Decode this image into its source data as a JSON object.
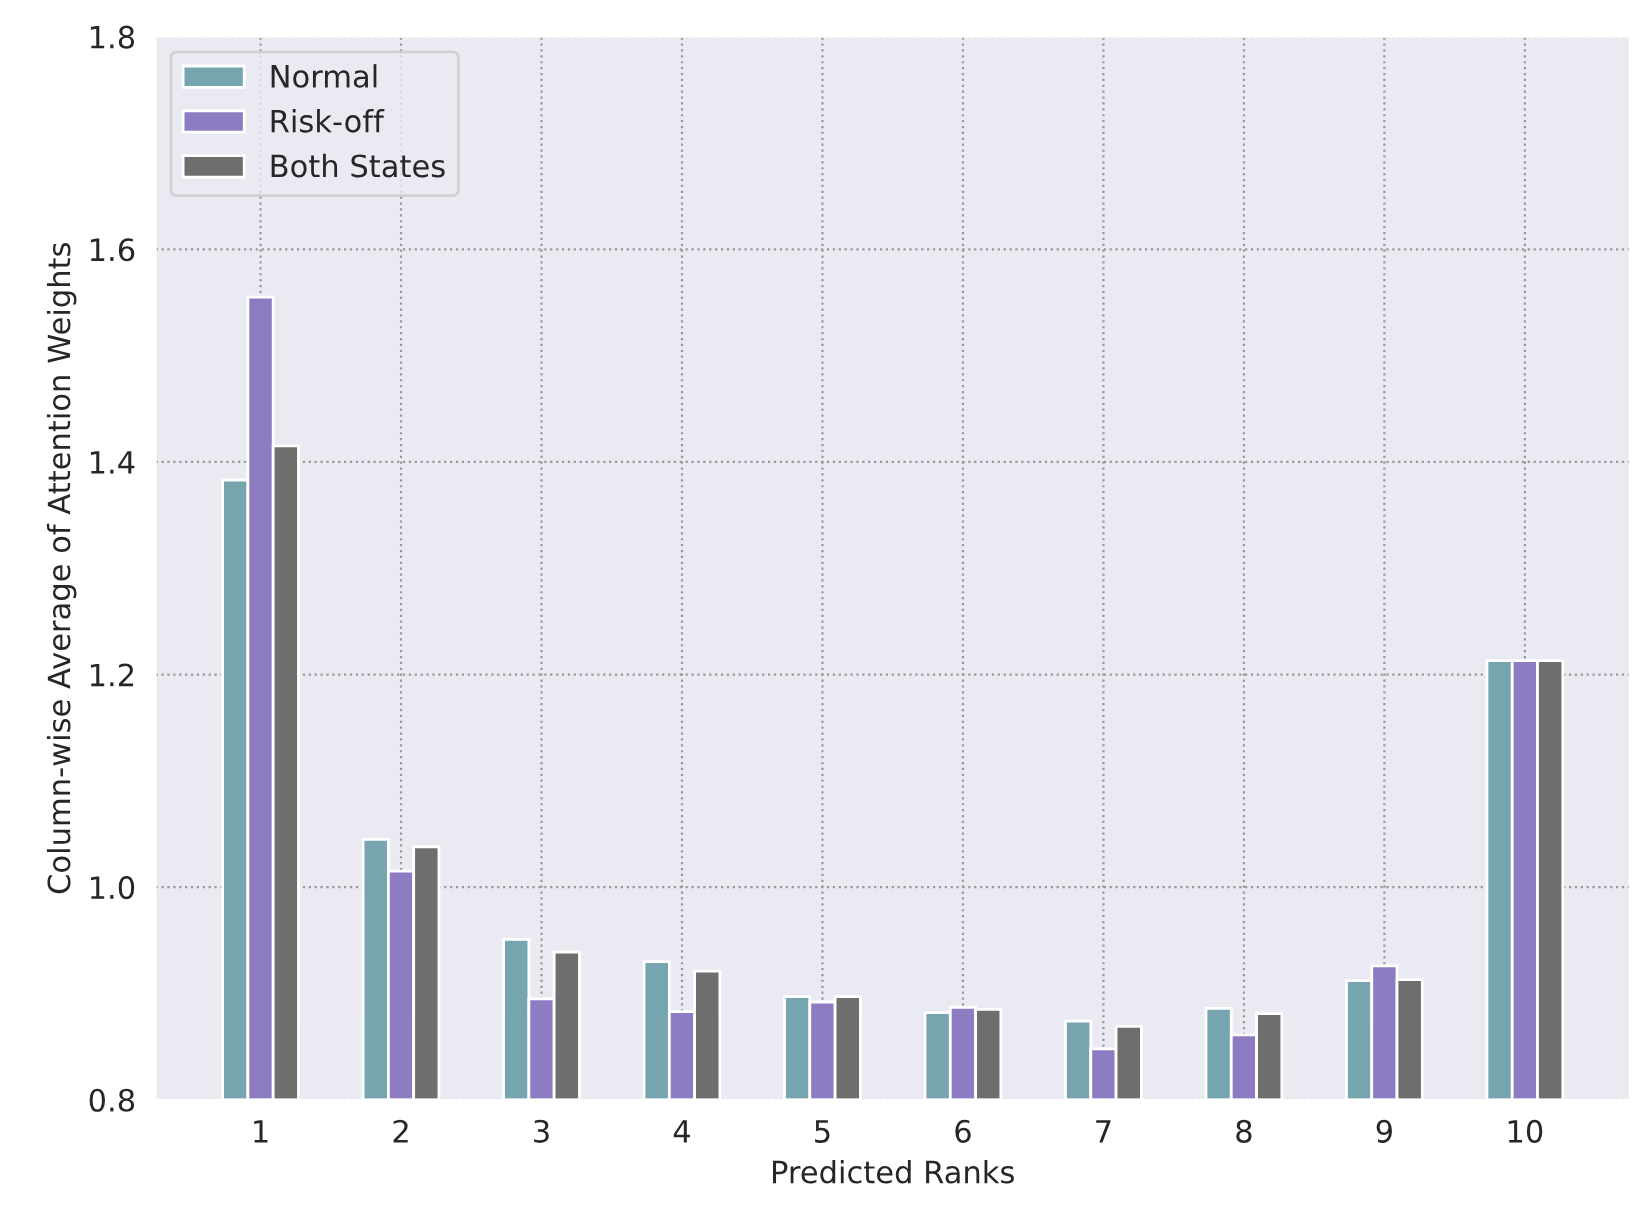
{
  "chart_data": {
    "type": "bar",
    "xlabel": "Predicted Ranks",
    "ylabel": "Column-wise Average of Attention Weights",
    "categories": [
      "1",
      "2",
      "3",
      "4",
      "5",
      "6",
      "7",
      "8",
      "9",
      "10"
    ],
    "series": [
      {
        "name": "Normal",
        "color": "#76a5af",
        "values": [
          1.383,
          1.045,
          0.951,
          0.93,
          0.897,
          0.882,
          0.874,
          0.886,
          0.912,
          1.213
        ]
      },
      {
        "name": "Risk-off",
        "color": "#8e7cc3",
        "values": [
          1.555,
          1.015,
          0.895,
          0.883,
          0.892,
          0.887,
          0.848,
          0.861,
          0.926,
          1.213
        ]
      },
      {
        "name": "Both States",
        "color": "#6e6e6e",
        "values": [
          1.415,
          1.038,
          0.939,
          0.921,
          0.897,
          0.885,
          0.869,
          0.881,
          0.913,
          1.213
        ]
      }
    ],
    "ylim": [
      0.8,
      1.8
    ],
    "yticks": [
      {
        "value": 0.8,
        "label": "0.8"
      },
      {
        "value": 1.0,
        "label": "1.0"
      },
      {
        "value": 1.2,
        "label": "1.2"
      },
      {
        "value": 1.4,
        "label": "1.4"
      },
      {
        "value": 1.6,
        "label": "1.6"
      },
      {
        "value": 1.8,
        "label": "1.8"
      }
    ],
    "grid": true,
    "legend": "top left"
  }
}
